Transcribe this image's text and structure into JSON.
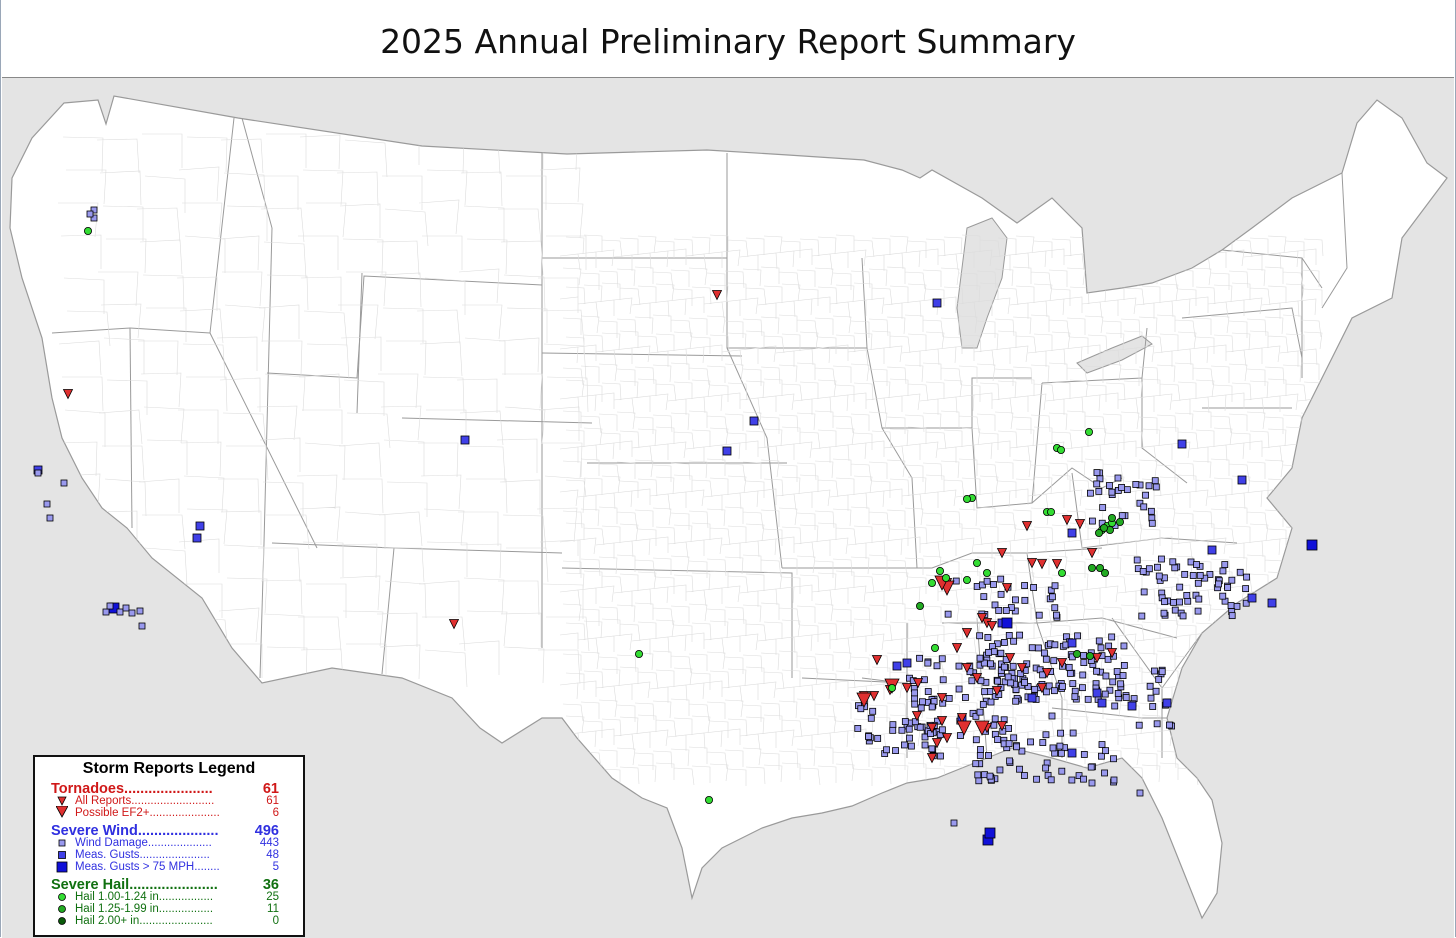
{
  "title": "2025 Annual Preliminary Report Summary",
  "legend": {
    "title": "Storm Reports Legend",
    "tornadoes": {
      "label": "Tornadoes......................",
      "count": "61",
      "items": [
        {
          "label": "All Reports..........................",
          "count": "61"
        },
        {
          "label": "Possible EF2+......................",
          "count": "6"
        }
      ]
    },
    "wind": {
      "label": "Severe Wind....................",
      "count": "496",
      "items": [
        {
          "label": "Wind Damage....................",
          "count": "443"
        },
        {
          "label": "Meas. Gusts......................",
          "count": "48"
        },
        {
          "label": "Meas. Gusts > 75 MPH........",
          "count": "5"
        }
      ]
    },
    "hail": {
      "label": "Severe Hail......................",
      "count": "36",
      "items": [
        {
          "label": "Hail 1.00-1.24 in.................",
          "count": "25"
        },
        {
          "label": "Hail 1.25-1.99 in.................",
          "count": "11"
        },
        {
          "label": "Hail 2.00+ in.......................",
          "count": "0"
        }
      ]
    }
  },
  "colors": {
    "tornado": "#e03030",
    "wind_damage": "#9999ee",
    "meas_gust": "#4040e8",
    "meas_gust_75": "#1010d8",
    "hail_small": "#33dd33",
    "hail_medium": "#22aa22",
    "hail_large": "#0a5a0a"
  },
  "icons": {
    "tornado": "triangle-down-icon",
    "wind": "square-icon",
    "hail": "circle-icon"
  }
}
